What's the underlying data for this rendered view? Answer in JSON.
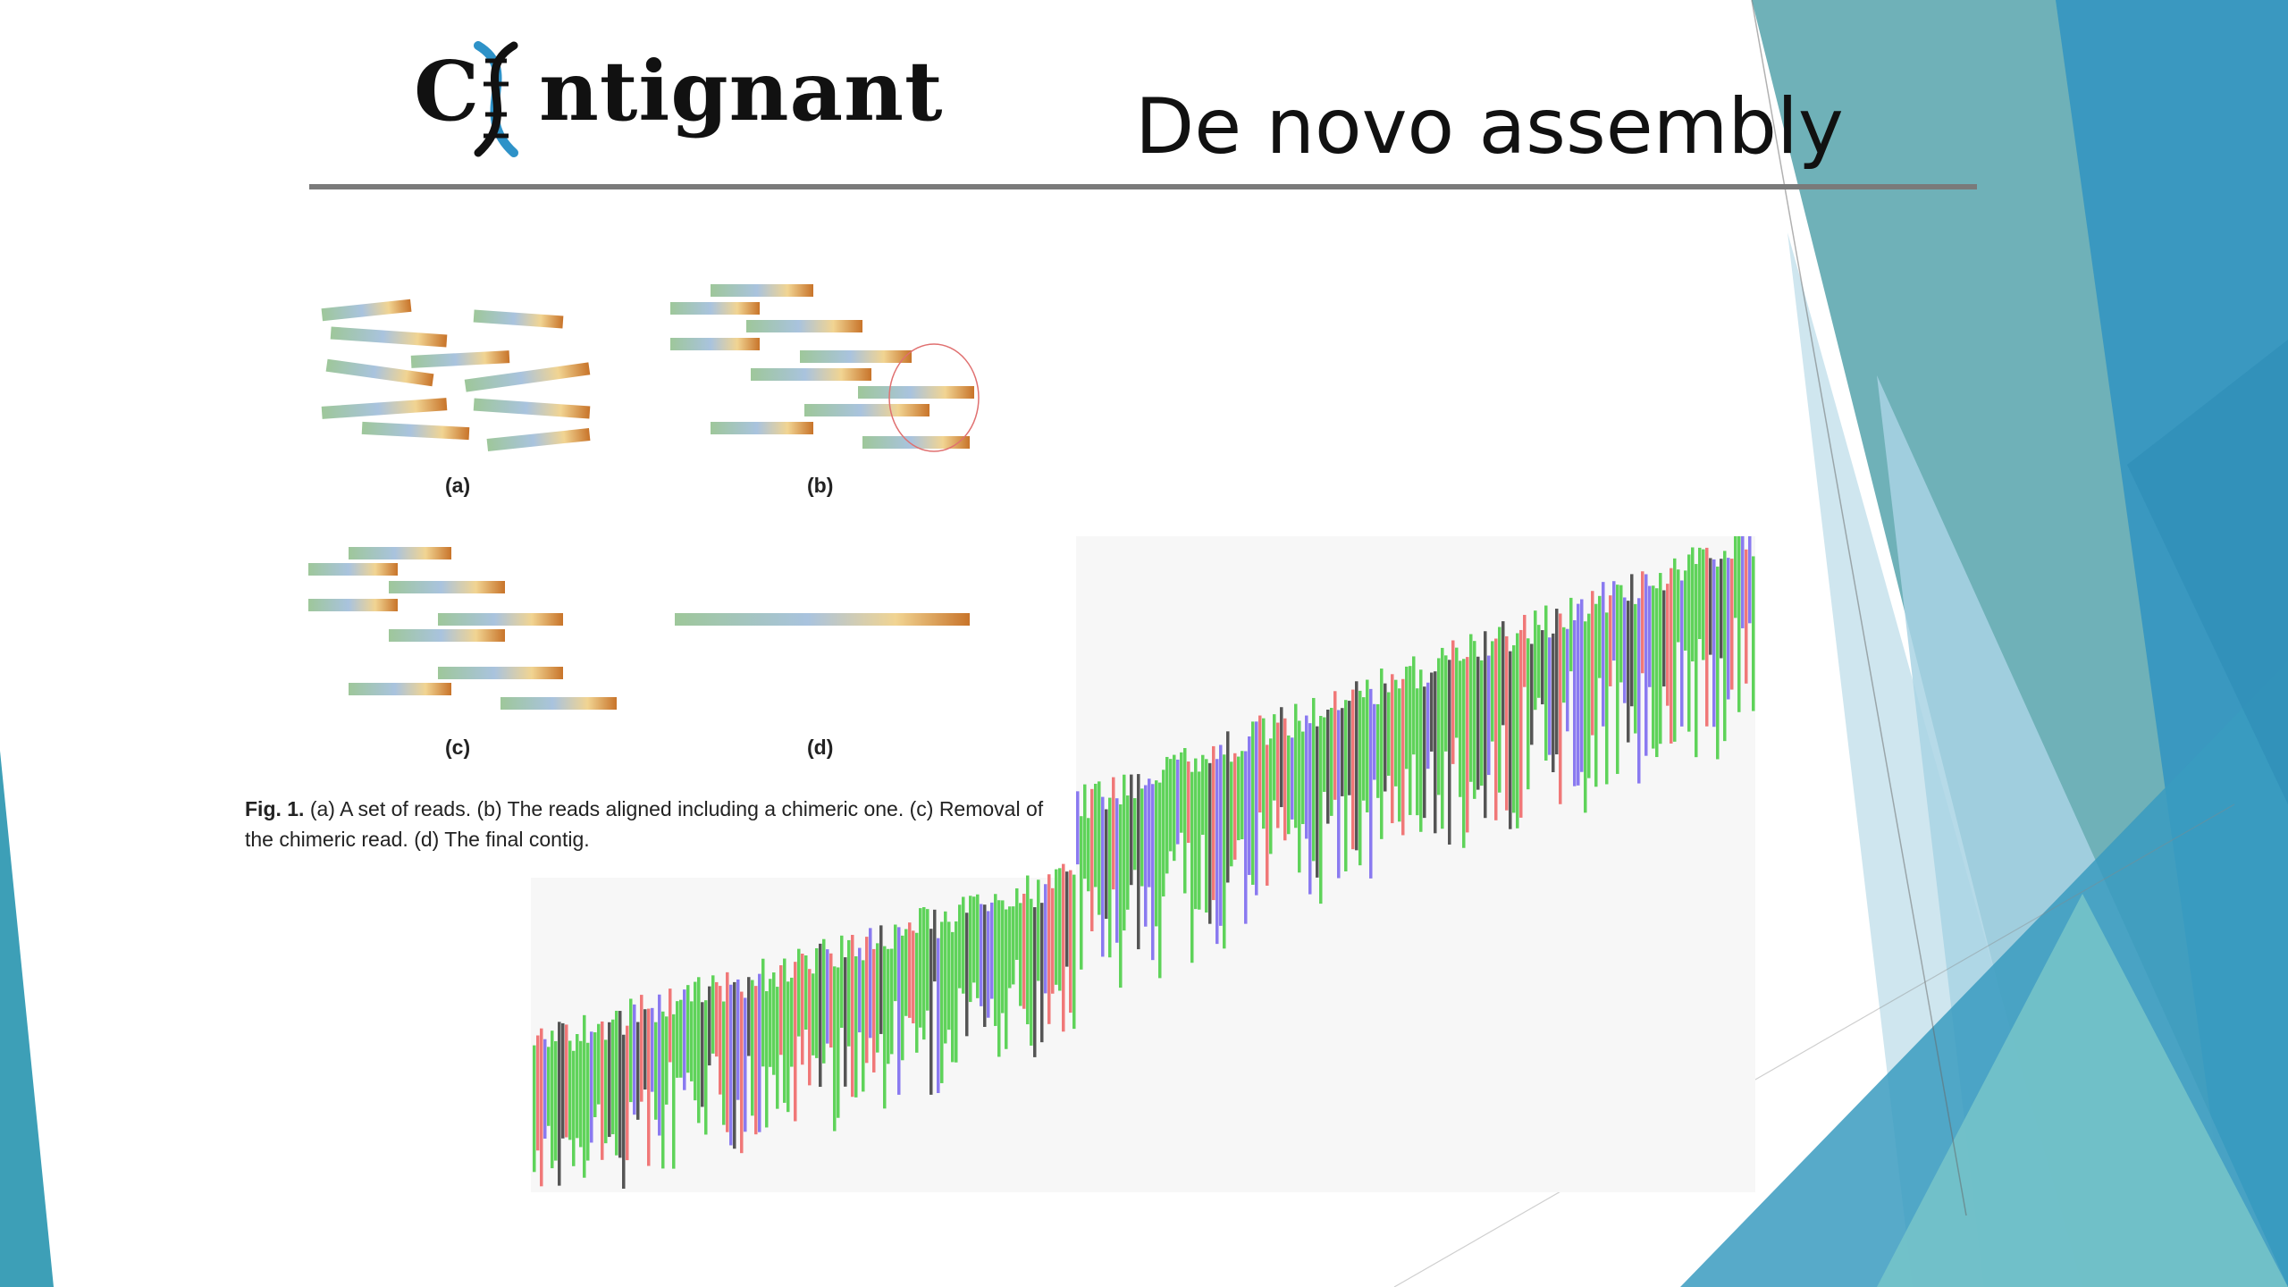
{
  "header": {
    "logo": {
      "text_c": "C",
      "text_rest": "ntignant",
      "icon": "dna-helix-icon"
    },
    "title": "De novo assembly"
  },
  "figure": {
    "panel_labels": [
      "(a)",
      "(b)",
      "(c)",
      "(d)"
    ],
    "caption_lead": "Fig. 1.",
    "caption_body": "(a) A set of reads.  (b) The reads aligned including a chimeric one.  (c) Removal of the chimeric read. (d) The final contig."
  },
  "colors": {
    "accent_teal": "#3d9fb7",
    "base_green": "#5fd35a",
    "base_red": "#f07878",
    "base_blue": "#8a7af0",
    "base_dark": "#555555",
    "read_gradient": [
      "#9ec79a",
      "#a9c3de",
      "#f1d492",
      "#c8742a"
    ]
  }
}
